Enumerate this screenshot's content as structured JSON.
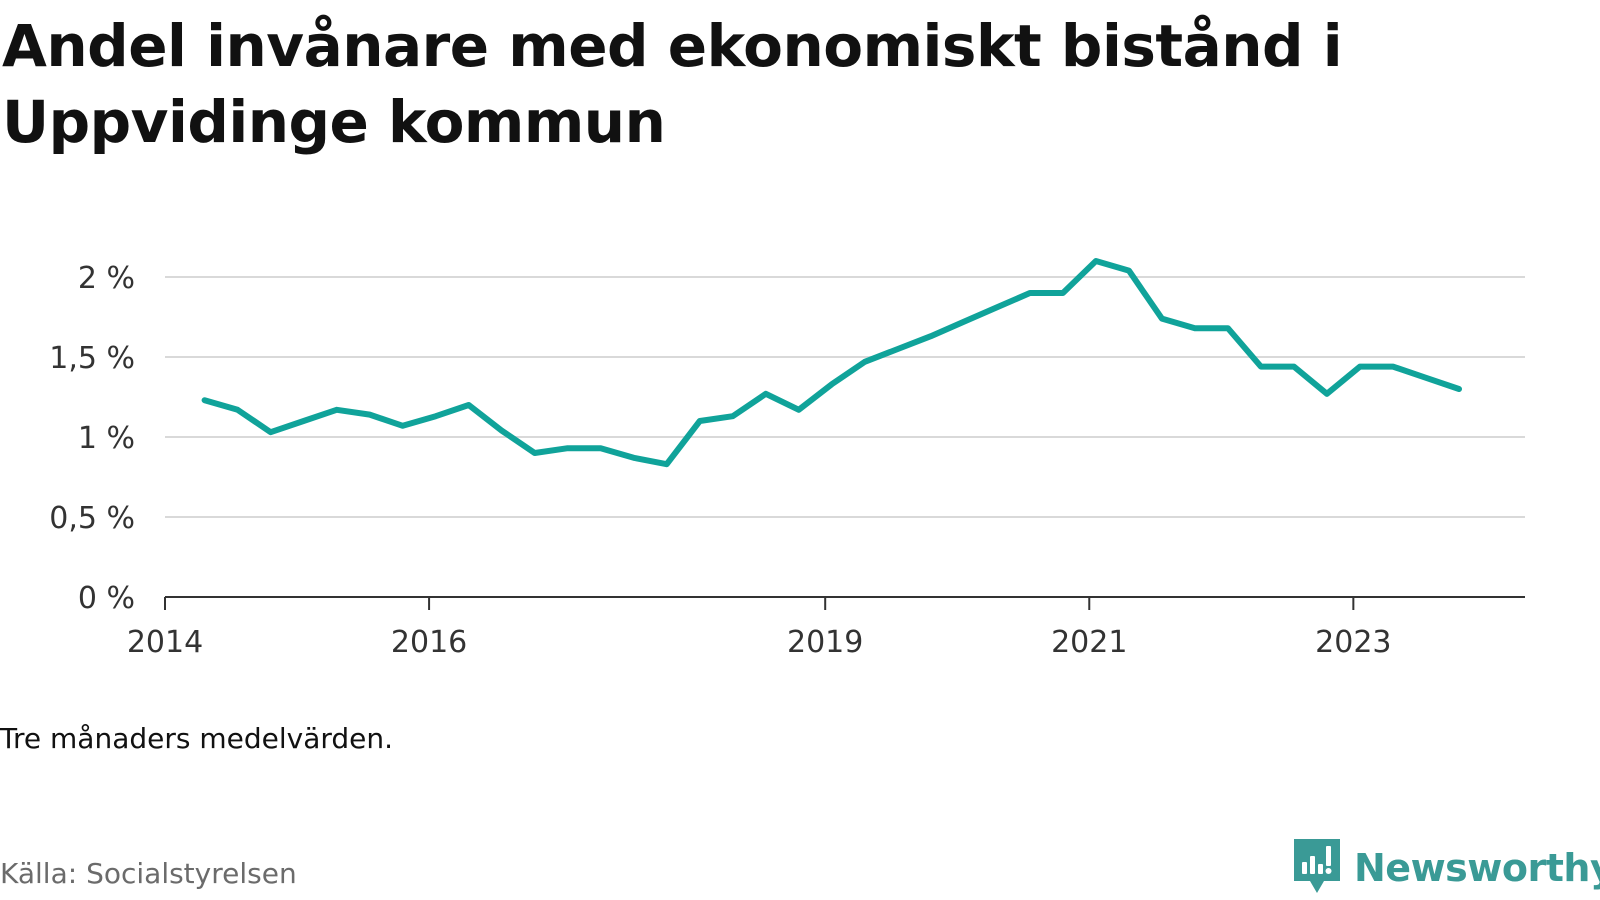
{
  "header": {
    "title": "Andel invånare med ekonomiskt bistånd i Uppvidinge kommun"
  },
  "note": "Tre månaders medelvärden.",
  "source": "Källa: Socialstyrelsen",
  "brand": {
    "name": "Newsworthy",
    "icon": "newsworthy-logo-icon",
    "color": "#3a9a96"
  },
  "chart_data": {
    "type": "line",
    "title": "Andel invånare med ekonomiskt bistånd i Uppvidinge kommun",
    "xlabel": "",
    "ylabel": "",
    "xlim": [
      2014,
      2024.3
    ],
    "ylim": [
      0,
      2.2
    ],
    "grid": true,
    "legend": "none",
    "x_ticks": [
      {
        "value": 2014,
        "label": "2014"
      },
      {
        "value": 2016,
        "label": "2016"
      },
      {
        "value": 2019,
        "label": "2019"
      },
      {
        "value": 2021,
        "label": "2021"
      },
      {
        "value": 2023,
        "label": "2023"
      }
    ],
    "y_ticks": [
      {
        "value": 0,
        "label": "0 %"
      },
      {
        "value": 0.5,
        "label": "0,5 %"
      },
      {
        "value": 1,
        "label": "1 %"
      },
      {
        "value": 1.5,
        "label": "1,5 %"
      },
      {
        "value": 2,
        "label": "2 %"
      }
    ],
    "series": [
      {
        "color": "#10a39a",
        "x": [
          2014.3,
          2014.55,
          2014.8,
          2015.05,
          2015.3,
          2015.55,
          2015.8,
          2016.05,
          2016.3,
          2016.55,
          2016.8,
          2017.05,
          2017.3,
          2017.55,
          2017.8,
          2018.05,
          2018.3,
          2018.55,
          2018.8,
          2019.05,
          2019.3,
          2019.55,
          2019.8,
          2020.05,
          2020.3,
          2020.55,
          2020.8,
          2021.05,
          2021.3,
          2021.55,
          2021.8,
          2022.05,
          2022.3,
          2022.55,
          2022.8,
          2023.05,
          2023.3,
          2023.55,
          2023.8
        ],
        "y": [
          1.23,
          1.17,
          1.03,
          1.1,
          1.17,
          1.14,
          1.07,
          1.13,
          1.2,
          1.04,
          0.9,
          0.93,
          0.93,
          0.87,
          0.83,
          1.1,
          1.13,
          1.27,
          1.17,
          1.33,
          1.47,
          1.55,
          1.63,
          1.72,
          1.81,
          1.9,
          1.9,
          2.1,
          2.04,
          1.74,
          1.68,
          1.68,
          1.44,
          1.44,
          1.27,
          1.44,
          1.44,
          1.37,
          1.3
        ]
      }
    ]
  }
}
